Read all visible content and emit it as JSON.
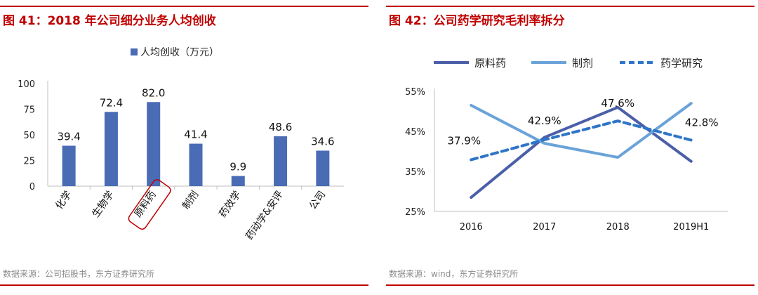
{
  "colors": {
    "accent": "#c00000",
    "bar": "#4a6cb5",
    "source": "#8c8c8c"
  },
  "panels": {
    "left": {
      "title": "图 41：2018 年公司细分业务人均创收",
      "source": "数据来源：公司招股书，东方证券研究所"
    },
    "right": {
      "title": "图 42：公司药学研究毛利率拆分",
      "source": "数据来源：wind，东方证券研究所"
    }
  },
  "chart_data": [
    {
      "type": "bar",
      "categories": [
        "化学",
        "生物学",
        "原料药",
        "制剂",
        "药效学",
        "药动学&安评",
        "公司"
      ],
      "series": [
        {
          "name": "人均创收（万元）",
          "values": [
            39.4,
            72.4,
            82.0,
            41.4,
            9.9,
            48.6,
            34.6
          ],
          "color": "#4a6cb5"
        }
      ],
      "data_labels": [
        "39.4",
        "72.4",
        "82.0",
        "41.4",
        "9.9",
        "48.6",
        "34.6"
      ],
      "yticks": [
        "0",
        "25",
        "50",
        "75",
        "100"
      ],
      "ylim": [
        0,
        100
      ],
      "highlighted_category": "原料药",
      "legend": "top-center",
      "grid": false
    },
    {
      "type": "line",
      "categories": [
        "2016",
        "2017",
        "2018",
        "2019H1"
      ],
      "series": [
        {
          "name": "原料药",
          "values": [
            28.5,
            43.5,
            51.0,
            37.5
          ],
          "color": "#4a5fa8",
          "dash": "solid"
        },
        {
          "name": "制剂",
          "values": [
            51.5,
            42.0,
            38.5,
            52.0
          ],
          "color": "#6aa3d8",
          "dash": "solid"
        },
        {
          "name": "药学研究",
          "values": [
            37.9,
            42.9,
            47.6,
            42.8
          ],
          "color": "#2e75c8",
          "dash": "dashed"
        }
      ],
      "data_labels": {
        "series": "药学研究",
        "labels": [
          "37.9%",
          "42.9%",
          "47.6%",
          "42.8%"
        ]
      },
      "yticks": [
        "25%",
        "35%",
        "45%",
        "55%"
      ],
      "ylim": [
        25,
        55
      ],
      "legend": "top",
      "grid": false
    }
  ]
}
